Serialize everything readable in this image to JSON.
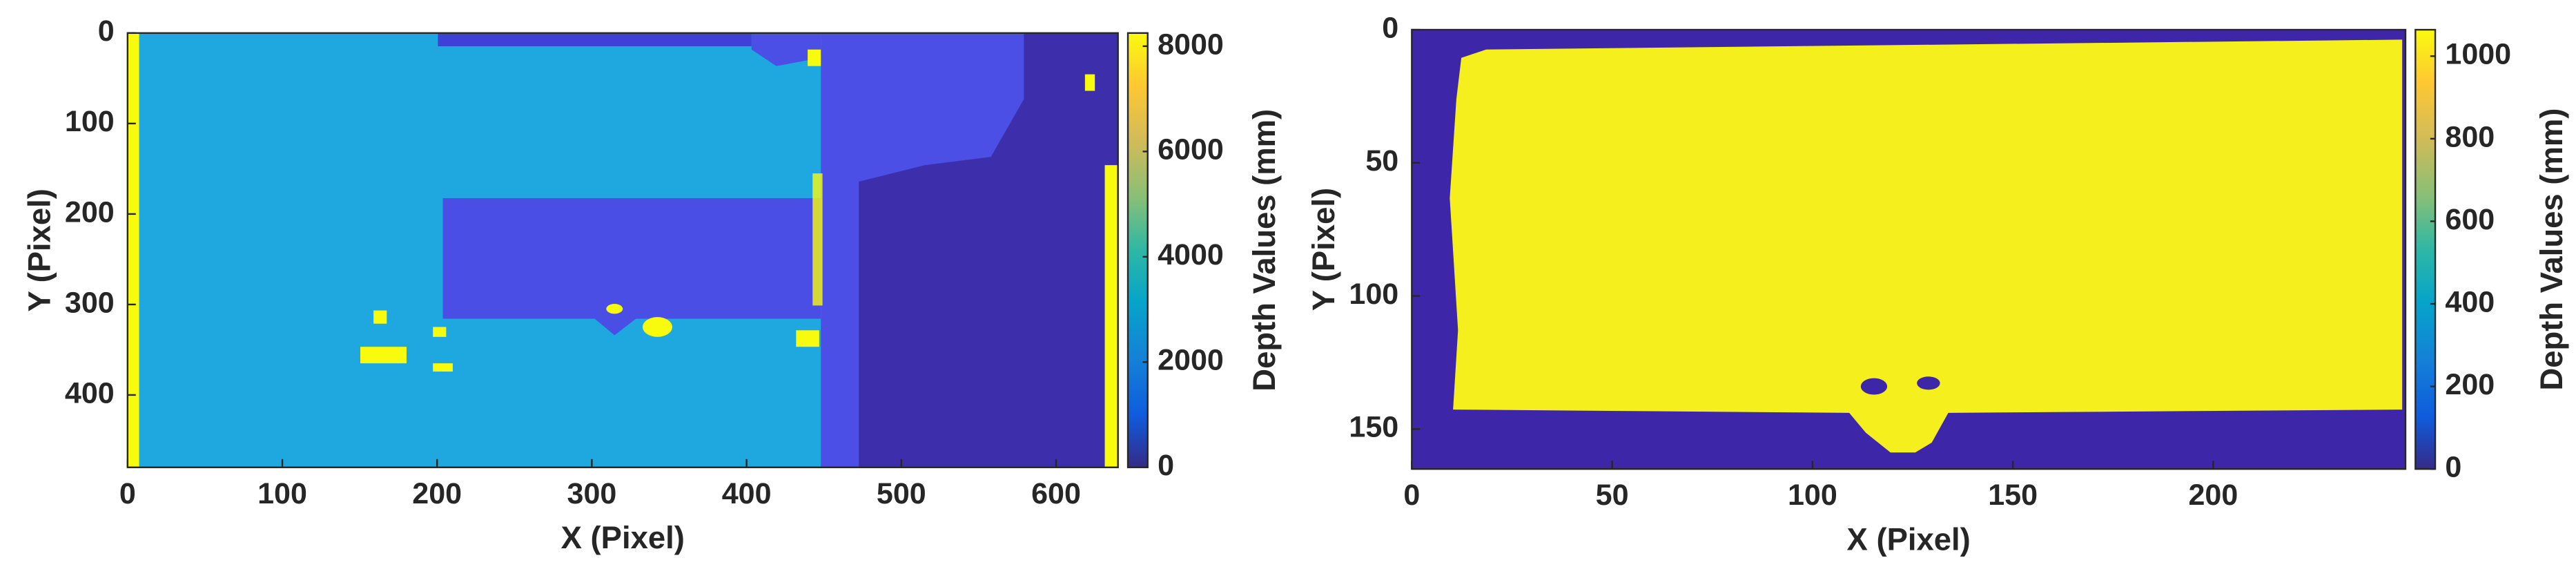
{
  "chart_data": [
    {
      "type": "heatmap",
      "xlabel": "X (Pixel)",
      "ylabel": "Y (Pixel)",
      "colorbar_label": "Depth Values (mm)",
      "xlim": [
        0,
        640
      ],
      "xticks": [
        0,
        100,
        200,
        300,
        400,
        500,
        600
      ],
      "ylim": [
        0,
        480
      ],
      "yticks": [
        0,
        100,
        200,
        300,
        400
      ],
      "y_reversed": true,
      "clim": [
        0,
        8250
      ],
      "cticks": [
        0,
        2000,
        4000,
        6000,
        8000
      ],
      "colormap": "parula"
    },
    {
      "type": "heatmap",
      "xlabel": "X (Pixel)",
      "ylabel": "Y (Pixel)",
      "colorbar_label": "Depth Values (mm)",
      "xlim": [
        0,
        248
      ],
      "xticks": [
        0,
        50,
        100,
        150,
        200
      ],
      "ylim": [
        0,
        165
      ],
      "yticks": [
        0,
        50,
        100,
        150
      ],
      "y_reversed": true,
      "clim": [
        0,
        1064
      ],
      "cticks": [
        0,
        200,
        400,
        600,
        800,
        1000
      ],
      "colormap": "parula"
    }
  ]
}
